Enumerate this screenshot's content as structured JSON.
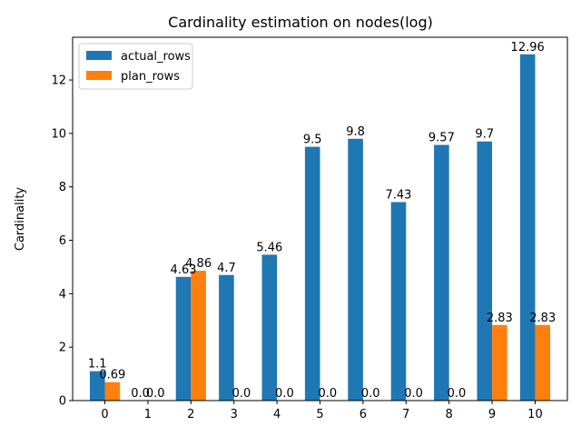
{
  "chart_data": {
    "type": "bar",
    "title": "Cardinality estimation on nodes(log)",
    "xlabel": "",
    "ylabel": "Cardinality",
    "categories": [
      "0",
      "1",
      "2",
      "3",
      "4",
      "5",
      "6",
      "7",
      "8",
      "9",
      "10"
    ],
    "series": [
      {
        "name": "actual_rows",
        "color": "#1f77b4",
        "values": [
          1.1,
          0.0,
          4.63,
          4.7,
          5.46,
          9.5,
          9.8,
          7.43,
          9.57,
          9.7,
          12.96
        ],
        "labels": [
          "1.1",
          "0.0",
          "4.63",
          "4.7",
          "5.46",
          "9.5",
          "9.8",
          "7.43",
          "9.57",
          "9.7",
          "12.96"
        ]
      },
      {
        "name": "plan_rows",
        "color": "#ff7f0e",
        "values": [
          0.69,
          0.0,
          4.86,
          0.0,
          0.0,
          0.0,
          0.0,
          0.0,
          0.0,
          2.83,
          2.83
        ],
        "labels": [
          "0.69",
          "0.0",
          "4.86",
          "0.0",
          "0.0",
          "0.0",
          "0.0",
          "0.0",
          "0.0",
          "2.83",
          "2.83"
        ]
      }
    ],
    "ylim": [
      0,
      13.6
    ],
    "yticks": [
      0,
      2,
      4,
      6,
      8,
      10,
      12
    ],
    "grid": false,
    "legend_position": "top-left"
  }
}
